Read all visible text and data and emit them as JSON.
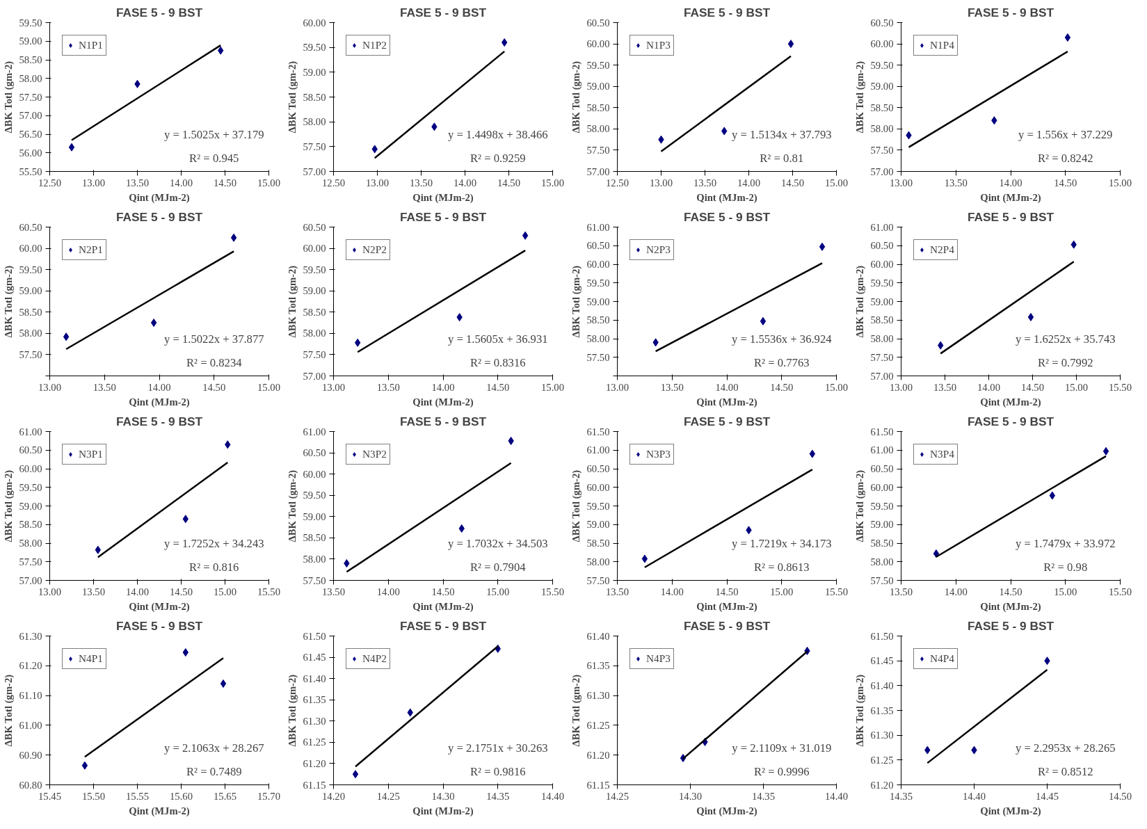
{
  "chart_data": [
    {
      "type": "scatter",
      "title": "FASE 5 - 9 BST",
      "xlabel": "Qint (MJm-2)",
      "ylabel": "ΔBK Totl (gm-2)",
      "grid": false,
      "legend": "top left",
      "xlim": [
        12.5,
        15
      ],
      "xticks": [
        {
          "value": 12.5,
          "label": "12.50"
        },
        {
          "value": 13,
          "label": "13.00"
        },
        {
          "value": 13.5,
          "label": "13.50"
        },
        {
          "value": 14,
          "label": "14.00"
        },
        {
          "value": 14.5,
          "label": "14.50"
        },
        {
          "value": 15,
          "label": "15.00"
        }
      ],
      "ylim": [
        55.5,
        59.5
      ],
      "yticks": [
        {
          "value": 55.5,
          "label": "55.50"
        },
        {
          "value": 56,
          "label": "56.00"
        },
        {
          "value": 56.5,
          "label": "56.50"
        },
        {
          "value": 57,
          "label": "57.00"
        },
        {
          "value": 57.5,
          "label": "57.50"
        },
        {
          "value": 58,
          "label": "58.00"
        },
        {
          "value": 58.5,
          "label": "58.50"
        },
        {
          "value": 59,
          "label": "59.00"
        },
        {
          "value": 59.5,
          "label": "59.50"
        }
      ],
      "series": [
        {
          "name": "N1P1",
          "color": "#000080",
          "marker": "diamond",
          "x": [
            12.75,
            13.5,
            14.45
          ],
          "values": [
            56.15,
            57.85,
            58.75
          ]
        },
        {
          "type": "line",
          "color": "#000000",
          "x": [
            12.75,
            14.45
          ],
          "values": [
            56.34,
            58.89
          ]
        }
      ],
      "annotations": [
        "y = 1.5025x + 37.179",
        "R² = 0.945"
      ]
    },
    {
      "type": "scatter",
      "title": "FASE 5 - 9 BST",
      "xlabel": "Qint (MJm-2)",
      "ylabel": "ΔBK Totl (gm-2)",
      "grid": false,
      "legend": "top left",
      "xlim": [
        12.5,
        15
      ],
      "xticks": [
        {
          "value": 12.5,
          "label": "12.50"
        },
        {
          "value": 13,
          "label": "13.00"
        },
        {
          "value": 13.5,
          "label": "13.50"
        },
        {
          "value": 14,
          "label": "14.00"
        },
        {
          "value": 14.5,
          "label": "14.50"
        },
        {
          "value": 15,
          "label": "15.00"
        }
      ],
      "ylim": [
        57,
        60
      ],
      "yticks": [
        {
          "value": 57,
          "label": "57.00"
        },
        {
          "value": 57.5,
          "label": "57.50"
        },
        {
          "value": 58,
          "label": "58.00"
        },
        {
          "value": 58.5,
          "label": "58.50"
        },
        {
          "value": 59,
          "label": "59.00"
        },
        {
          "value": 59.5,
          "label": "59.50"
        },
        {
          "value": 60,
          "label": "60.00"
        }
      ],
      "series": [
        {
          "name": "N1P2",
          "color": "#000080",
          "marker": "diamond",
          "x": [
            12.97,
            13.65,
            14.45
          ],
          "values": [
            57.45,
            57.9,
            59.6
          ]
        },
        {
          "type": "line",
          "color": "#000000",
          "x": [
            12.97,
            14.45
          ],
          "values": [
            57.27,
            59.42
          ]
        }
      ],
      "annotations": [
        "y = 1.4498x + 38.466",
        "R² = 0.9259"
      ]
    },
    {
      "type": "scatter",
      "title": "FASE 5 - 9 BST",
      "xlabel": "Qint (MJm-2)",
      "ylabel": "ΔBK Totl (gm-2)",
      "grid": false,
      "legend": "top left",
      "xlim": [
        12.5,
        15
      ],
      "xticks": [
        {
          "value": 12.5,
          "label": "12.50"
        },
        {
          "value": 13,
          "label": "13.00"
        },
        {
          "value": 13.5,
          "label": "13.50"
        },
        {
          "value": 14,
          "label": "14.00"
        },
        {
          "value": 14.5,
          "label": "14.50"
        },
        {
          "value": 15,
          "label": "15.00"
        }
      ],
      "ylim": [
        57,
        60.5
      ],
      "yticks": [
        {
          "value": 57,
          "label": "57.00"
        },
        {
          "value": 57.5,
          "label": "57.50"
        },
        {
          "value": 58,
          "label": "58.00"
        },
        {
          "value": 58.5,
          "label": "58.50"
        },
        {
          "value": 59,
          "label": "59.00"
        },
        {
          "value": 59.5,
          "label": "59.50"
        },
        {
          "value": 60,
          "label": "60.00"
        },
        {
          "value": 60.5,
          "label": "60.50"
        }
      ],
      "series": [
        {
          "name": "N1P3",
          "color": "#000080",
          "marker": "diamond",
          "x": [
            13.0,
            13.72,
            14.48
          ],
          "values": [
            57.75,
            57.95,
            60.0
          ]
        },
        {
          "type": "line",
          "color": "#000000",
          "x": [
            13.0,
            14.48
          ],
          "values": [
            57.47,
            59.71
          ]
        }
      ],
      "annotations": [
        "y = 1.5134x + 37.793",
        "R² = 0.81"
      ]
    },
    {
      "type": "scatter",
      "title": "FASE 5 - 9 BST",
      "xlabel": "Qint (MJm-2)",
      "ylabel": "ΔBK Totl (gm-2)",
      "grid": false,
      "legend": "top left",
      "xlim": [
        13,
        15
      ],
      "xticks": [
        {
          "value": 13,
          "label": "13.00"
        },
        {
          "value": 13.5,
          "label": "13.50"
        },
        {
          "value": 14,
          "label": "14.00"
        },
        {
          "value": 14.5,
          "label": "14.50"
        },
        {
          "value": 15,
          "label": "15.00"
        }
      ],
      "ylim": [
        57,
        60.5
      ],
      "yticks": [
        {
          "value": 57,
          "label": "57.00"
        },
        {
          "value": 57.5,
          "label": "57.50"
        },
        {
          "value": 58,
          "label": "58.00"
        },
        {
          "value": 58.5,
          "label": "58.50"
        },
        {
          "value": 59,
          "label": "59.00"
        },
        {
          "value": 59.5,
          "label": "59.50"
        },
        {
          "value": 60,
          "label": "60.00"
        },
        {
          "value": 60.5,
          "label": "60.50"
        }
      ],
      "series": [
        {
          "name": "N1P4",
          "color": "#000080",
          "marker": "diamond",
          "x": [
            13.07,
            13.85,
            14.52
          ],
          "values": [
            57.85,
            58.2,
            60.15
          ]
        },
        {
          "type": "line",
          "color": "#000000",
          "x": [
            13.07,
            14.52
          ],
          "values": [
            57.57,
            59.82
          ]
        }
      ],
      "annotations": [
        "y = 1.556x + 37.229",
        "R² = 0.8242"
      ]
    },
    {
      "type": "scatter",
      "title": "FASE 5 - 9 BST",
      "xlabel": "Qint (MJm-2)",
      "ylabel": "ΔBK Totl (gm-2)",
      "grid": false,
      "legend": "top left",
      "xlim": [
        13,
        15
      ],
      "xticks": [
        {
          "value": 13,
          "label": "13.00"
        },
        {
          "value": 13.5,
          "label": "13.50"
        },
        {
          "value": 14,
          "label": "14.00"
        },
        {
          "value": 14.5,
          "label": "14.50"
        },
        {
          "value": 15,
          "label": "15.00"
        }
      ],
      "ylim": [
        57,
        60.5
      ],
      "yticks": [
        {
          "value": 57,
          "label": null
        },
        {
          "value": 57.5,
          "label": "57.50"
        },
        {
          "value": 58,
          "label": "58.00"
        },
        {
          "value": 58.5,
          "label": "58.50"
        },
        {
          "value": 59,
          "label": "59.00"
        },
        {
          "value": 59.5,
          "label": "59.50"
        },
        {
          "value": 60,
          "label": "60.00"
        },
        {
          "value": 60.5,
          "label": "60.50"
        }
      ],
      "series": [
        {
          "name": "N2P1",
          "color": "#000080",
          "marker": "diamond",
          "x": [
            13.15,
            13.95,
            14.68
          ],
          "values": [
            57.92,
            58.25,
            60.25
          ]
        },
        {
          "type": "line",
          "color": "#000000",
          "x": [
            13.15,
            14.68
          ],
          "values": [
            57.63,
            59.93
          ]
        }
      ],
      "annotations": [
        "y = 1.5022x + 37.877",
        "R² = 0.8234"
      ]
    },
    {
      "type": "scatter",
      "title": "FASE 5 - 9 BST",
      "xlabel": "Qint (MJm-2)",
      "ylabel": "ΔBK Totl (gm-2)",
      "grid": false,
      "legend": "top left",
      "xlim": [
        13,
        15
      ],
      "xticks": [
        {
          "value": 13,
          "label": "13.00"
        },
        {
          "value": 13.5,
          "label": "13.50"
        },
        {
          "value": 14,
          "label": "14.00"
        },
        {
          "value": 14.5,
          "label": "14.50"
        },
        {
          "value": 15,
          "label": "15.00"
        }
      ],
      "ylim": [
        57,
        60.5
      ],
      "yticks": [
        {
          "value": 57,
          "label": "57.00"
        },
        {
          "value": 57.5,
          "label": "57.50"
        },
        {
          "value": 58,
          "label": "58.00"
        },
        {
          "value": 58.5,
          "label": "58.50"
        },
        {
          "value": 59,
          "label": "59.00"
        },
        {
          "value": 59.5,
          "label": "59.50"
        },
        {
          "value": 60,
          "label": "60.00"
        },
        {
          "value": 60.5,
          "label": "60.50"
        }
      ],
      "series": [
        {
          "name": "N2P2",
          "color": "#000080",
          "marker": "diamond",
          "x": [
            13.22,
            14.15,
            14.75
          ],
          "values": [
            57.78,
            58.38,
            60.3
          ]
        },
        {
          "type": "line",
          "color": "#000000",
          "x": [
            13.22,
            14.75
          ],
          "values": [
            57.56,
            59.95
          ]
        }
      ],
      "annotations": [
        "y = 1.5605x + 36.931",
        "R² = 0.8316"
      ]
    },
    {
      "type": "scatter",
      "title": "FASE 5 - 9 BST",
      "xlabel": "Qint (MJm-2)",
      "ylabel": "ΔBK Totl (gm-2)",
      "grid": false,
      "legend": "top left",
      "xlim": [
        13,
        15
      ],
      "xticks": [
        {
          "value": 13,
          "label": "13.00"
        },
        {
          "value": 13.5,
          "label": "13.50"
        },
        {
          "value": 14,
          "label": "14.00"
        },
        {
          "value": 14.5,
          "label": "14.50"
        },
        {
          "value": 15,
          "label": "15.00"
        }
      ],
      "ylim": [
        57,
        61
      ],
      "yticks": [
        {
          "value": 57,
          "label": null
        },
        {
          "value": 57.5,
          "label": "57.50"
        },
        {
          "value": 58,
          "label": "58.00"
        },
        {
          "value": 58.5,
          "label": "58.50"
        },
        {
          "value": 59,
          "label": "59.00"
        },
        {
          "value": 59.5,
          "label": "59.50"
        },
        {
          "value": 60,
          "label": "60.00"
        },
        {
          "value": 60.5,
          "label": "60.50"
        },
        {
          "value": 61,
          "label": "61.00"
        }
      ],
      "series": [
        {
          "name": "N2P3",
          "color": "#000080",
          "marker": "diamond",
          "x": [
            13.35,
            14.33,
            14.87
          ],
          "values": [
            57.9,
            58.47,
            60.47
          ]
        },
        {
          "type": "line",
          "color": "#000000",
          "x": [
            13.35,
            14.87
          ],
          "values": [
            57.66,
            60.03
          ]
        }
      ],
      "annotations": [
        "y = 1.5536x + 36.924",
        "R² = 0.7763"
      ]
    },
    {
      "type": "scatter",
      "title": "FASE 5 - 9 BST",
      "xlabel": "Qint (MJm-2)",
      "ylabel": "ΔBK Totl (gm-2)",
      "grid": false,
      "legend": "top left",
      "xlim": [
        13,
        15.5
      ],
      "xticks": [
        {
          "value": 13,
          "label": "13.00"
        },
        {
          "value": 13.5,
          "label": "13.50"
        },
        {
          "value": 14,
          "label": "14.00"
        },
        {
          "value": 14.5,
          "label": "14.50"
        },
        {
          "value": 15,
          "label": "15.00"
        },
        {
          "value": 15.5,
          "label": "15.50"
        }
      ],
      "ylim": [
        57,
        61
      ],
      "yticks": [
        {
          "value": 57,
          "label": "57.00"
        },
        {
          "value": 57.5,
          "label": "57.50"
        },
        {
          "value": 58,
          "label": "58.00"
        },
        {
          "value": 58.5,
          "label": "58.50"
        },
        {
          "value": 59,
          "label": "59.00"
        },
        {
          "value": 59.5,
          "label": "59.50"
        },
        {
          "value": 60,
          "label": "60.00"
        },
        {
          "value": 60.5,
          "label": "60.50"
        },
        {
          "value": 61,
          "label": "61.00"
        }
      ],
      "series": [
        {
          "name": "N2P4",
          "color": "#000080",
          "marker": "diamond",
          "x": [
            13.45,
            14.48,
            14.97
          ],
          "values": [
            57.82,
            58.58,
            60.53
          ]
        },
        {
          "type": "line",
          "color": "#000000",
          "x": [
            13.45,
            14.97
          ],
          "values": [
            57.6,
            60.07
          ]
        }
      ],
      "annotations": [
        "y = 1.6252x + 35.743",
        "R² = 0.7992"
      ]
    },
    {
      "type": "scatter",
      "title": "FASE 5 - 9 BST",
      "xlabel": "Qint (MJm-2)",
      "ylabel": "ΔBK Totl (gm-2)",
      "grid": false,
      "legend": "top left",
      "xlim": [
        13,
        15.5
      ],
      "xticks": [
        {
          "value": 13,
          "label": "13.00"
        },
        {
          "value": 13.5,
          "label": "13.50"
        },
        {
          "value": 14,
          "label": "14.00"
        },
        {
          "value": 14.5,
          "label": "14.50"
        },
        {
          "value": 15,
          "label": "15.00"
        },
        {
          "value": 15.5,
          "label": "15.50"
        }
      ],
      "ylim": [
        57,
        61
      ],
      "yticks": [
        {
          "value": 57,
          "label": "57.00"
        },
        {
          "value": 57.5,
          "label": "57.50"
        },
        {
          "value": 58,
          "label": "58.00"
        },
        {
          "value": 58.5,
          "label": "58.50"
        },
        {
          "value": 59,
          "label": "59.00"
        },
        {
          "value": 59.5,
          "label": "59.50"
        },
        {
          "value": 60,
          "label": "60.00"
        },
        {
          "value": 60.5,
          "label": "60.50"
        },
        {
          "value": 61,
          "label": "61.00"
        }
      ],
      "series": [
        {
          "name": "N3P1",
          "color": "#000080",
          "marker": "diamond",
          "x": [
            13.55,
            14.55,
            15.03
          ],
          "values": [
            57.82,
            58.65,
            60.65
          ]
        },
        {
          "type": "line",
          "color": "#000000",
          "x": [
            13.55,
            15.03
          ],
          "values": [
            57.62,
            60.17
          ]
        }
      ],
      "annotations": [
        "y = 1.7252x + 34.243",
        "R² = 0.816"
      ]
    },
    {
      "type": "scatter",
      "title": "FASE 5 - 9 BST",
      "xlabel": "Qint (MJm-2)",
      "ylabel": "ΔBK Totl (gm-2)",
      "grid": false,
      "legend": "top left",
      "xlim": [
        13.5,
        15.5
      ],
      "xticks": [
        {
          "value": 13.5,
          "label": "13.50"
        },
        {
          "value": 14,
          "label": "14.00"
        },
        {
          "value": 14.5,
          "label": "14.50"
        },
        {
          "value": 15,
          "label": "15.00"
        },
        {
          "value": 15.5,
          "label": "15.50"
        }
      ],
      "ylim": [
        57.5,
        61
      ],
      "yticks": [
        {
          "value": 57.5,
          "label": "57.50"
        },
        {
          "value": 58,
          "label": "58.00"
        },
        {
          "value": 58.5,
          "label": "58.50"
        },
        {
          "value": 59,
          "label": "59.00"
        },
        {
          "value": 59.5,
          "label": "59.50"
        },
        {
          "value": 60,
          "label": "60.00"
        },
        {
          "value": 60.5,
          "label": "60.50"
        },
        {
          "value": 61,
          "label": "61.00"
        }
      ],
      "series": [
        {
          "name": "N3P2",
          "color": "#000080",
          "marker": "diamond",
          "x": [
            13.62,
            14.67,
            15.12
          ],
          "values": [
            57.9,
            58.72,
            60.78
          ]
        },
        {
          "type": "line",
          "color": "#000000",
          "x": [
            13.62,
            15.12
          ],
          "values": [
            57.7,
            60.26
          ]
        }
      ],
      "annotations": [
        "y = 1.7032x + 34.503",
        "R² = 0.7904"
      ]
    },
    {
      "type": "scatter",
      "title": "FASE 5 - 9 BST",
      "xlabel": "Qint (MJm-2)",
      "ylabel": "ΔBK Totl (gm-2)",
      "grid": false,
      "legend": "top left",
      "xlim": [
        13.5,
        15.5
      ],
      "xticks": [
        {
          "value": 13.5,
          "label": "13.50"
        },
        {
          "value": 14,
          "label": "14.00"
        },
        {
          "value": 14.5,
          "label": "14.50"
        },
        {
          "value": 15,
          "label": "15.00"
        },
        {
          "value": 15.5,
          "label": "15.50"
        }
      ],
      "ylim": [
        57.5,
        61.5
      ],
      "yticks": [
        {
          "value": 57.5,
          "label": "57.50"
        },
        {
          "value": 58,
          "label": "58.00"
        },
        {
          "value": 58.5,
          "label": "58.50"
        },
        {
          "value": 59,
          "label": "59.00"
        },
        {
          "value": 59.5,
          "label": "59.50"
        },
        {
          "value": 60,
          "label": "60.00"
        },
        {
          "value": 60.5,
          "label": "60.50"
        },
        {
          "value": 61,
          "label": "61.00"
        },
        {
          "value": 61.5,
          "label": "61.50"
        }
      ],
      "series": [
        {
          "name": "N3P3",
          "color": "#000080",
          "marker": "diamond",
          "x": [
            13.75,
            14.7,
            15.28
          ],
          "values": [
            58.08,
            58.85,
            60.9
          ]
        },
        {
          "type": "line",
          "color": "#000000",
          "x": [
            13.75,
            15.28
          ],
          "values": [
            57.85,
            60.48
          ]
        }
      ],
      "annotations": [
        "y = 1.7219x + 34.173",
        "R² = 0.8613"
      ]
    },
    {
      "type": "scatter",
      "title": "FASE 5 - 9 BST",
      "xlabel": "Qint (MJm-2)",
      "ylabel": "ΔBK Totl (gm-2)",
      "grid": false,
      "legend": "top left",
      "xlim": [
        13.5,
        15.5
      ],
      "xticks": [
        {
          "value": 13.5,
          "label": "13.50"
        },
        {
          "value": 14,
          "label": "14.00"
        },
        {
          "value": 14.5,
          "label": "14.50"
        },
        {
          "value": 15,
          "label": "15.00"
        },
        {
          "value": 15.5,
          "label": "15.50"
        }
      ],
      "ylim": [
        57.5,
        61.5
      ],
      "yticks": [
        {
          "value": 57.5,
          "label": "57.50"
        },
        {
          "value": 58,
          "label": "58.00"
        },
        {
          "value": 58.5,
          "label": "58.50"
        },
        {
          "value": 59,
          "label": "59.00"
        },
        {
          "value": 59.5,
          "label": "59.50"
        },
        {
          "value": 60,
          "label": "60.00"
        },
        {
          "value": 60.5,
          "label": "60.50"
        },
        {
          "value": 61,
          "label": "61.00"
        },
        {
          "value": 61.5,
          "label": "61.50"
        }
      ],
      "series": [
        {
          "name": "N3P4",
          "color": "#000080",
          "marker": "diamond",
          "x": [
            13.82,
            14.88,
            15.37
          ],
          "values": [
            58.22,
            59.78,
            60.97
          ]
        },
        {
          "type": "line",
          "color": "#000000",
          "x": [
            13.82,
            15.37
          ],
          "values": [
            58.13,
            60.84
          ]
        }
      ],
      "annotations": [
        "y = 1.7479x + 33.972",
        "R² = 0.98"
      ]
    },
    {
      "type": "scatter",
      "title": "FASE 5 - 9 BST",
      "xlabel": "Qint (MJm-2)",
      "ylabel": "ΔBK Totl (gm-2)",
      "grid": false,
      "legend": "top left",
      "xlim": [
        15.45,
        15.7
      ],
      "xticks": [
        {
          "value": 15.45,
          "label": "15.45"
        },
        {
          "value": 15.5,
          "label": "15.50"
        },
        {
          "value": 15.55,
          "label": "15.55"
        },
        {
          "value": 15.6,
          "label": "15.60"
        },
        {
          "value": 15.65,
          "label": "15.65"
        },
        {
          "value": 15.7,
          "label": "15.70"
        }
      ],
      "ylim": [
        60.8,
        61.3
      ],
      "yticks": [
        {
          "value": 60.8,
          "label": "60.80"
        },
        {
          "value": 60.9,
          "label": "60.90"
        },
        {
          "value": 61,
          "label": "61.00"
        },
        {
          "value": 61.1,
          "label": "61.10"
        },
        {
          "value": 61.2,
          "label": "61.20"
        },
        {
          "value": 61.3,
          "label": "61.30"
        }
      ],
      "series": [
        {
          "name": "N4P1",
          "color": "#000080",
          "marker": "diamond",
          "x": [
            15.49,
            15.605,
            15.648
          ],
          "values": [
            60.865,
            61.245,
            61.14
          ]
        },
        {
          "type": "line",
          "color": "#000000",
          "x": [
            15.49,
            15.648
          ],
          "values": [
            60.894,
            61.226
          ]
        }
      ],
      "annotations": [
        "y = 2.1063x + 28.267",
        "R² = 0.7489"
      ]
    },
    {
      "type": "scatter",
      "title": "FASE 5 - 9 BST",
      "xlabel": "Qint (MJm-2)",
      "ylabel": "ΔBK Totl (gm-2)",
      "grid": false,
      "legend": "top left",
      "xlim": [
        14.2,
        14.4
      ],
      "xticks": [
        {
          "value": 14.2,
          "label": "14.20"
        },
        {
          "value": 14.25,
          "label": "14.25"
        },
        {
          "value": 14.3,
          "label": "14.30"
        },
        {
          "value": 14.35,
          "label": "14.35"
        },
        {
          "value": 14.4,
          "label": "14.40"
        }
      ],
      "ylim": [
        61.15,
        61.5
      ],
      "yticks": [
        {
          "value": 61.15,
          "label": "61.15"
        },
        {
          "value": 61.2,
          "label": "61.20"
        },
        {
          "value": 61.25,
          "label": "61.25"
        },
        {
          "value": 61.3,
          "label": "61.30"
        },
        {
          "value": 61.35,
          "label": "61.35"
        },
        {
          "value": 61.4,
          "label": "61.40"
        },
        {
          "value": 61.45,
          "label": "61.45"
        },
        {
          "value": 61.5,
          "label": "61.50"
        }
      ],
      "series": [
        {
          "name": "N4P2",
          "color": "#000080",
          "marker": "diamond",
          "x": [
            14.22,
            14.27,
            14.35
          ],
          "values": [
            61.175,
            61.32,
            61.47
          ]
        },
        {
          "type": "line",
          "color": "#000000",
          "x": [
            14.22,
            14.35
          ],
          "values": [
            61.193,
            61.476
          ]
        }
      ],
      "annotations": [
        "y = 2.1751x + 30.263",
        "R² = 0.9816"
      ]
    },
    {
      "type": "scatter",
      "title": "FASE 5 - 9 BST",
      "xlabel": "Qint (MJm-2)",
      "ylabel": "ΔBK Totl (gm-2)",
      "grid": false,
      "legend": "top left",
      "xlim": [
        14.25,
        14.4
      ],
      "xticks": [
        {
          "value": 14.25,
          "label": "14.25"
        },
        {
          "value": 14.3,
          "label": "14.30"
        },
        {
          "value": 14.35,
          "label": "14.35"
        },
        {
          "value": 14.4,
          "label": "14.40"
        }
      ],
      "ylim": [
        61.15,
        61.4
      ],
      "yticks": [
        {
          "value": 61.15,
          "label": "61.15"
        },
        {
          "value": 61.2,
          "label": "61.20"
        },
        {
          "value": 61.25,
          "label": "61.25"
        },
        {
          "value": 61.3,
          "label": "61.30"
        },
        {
          "value": 61.35,
          "label": "61.35"
        },
        {
          "value": 61.4,
          "label": "61.40"
        }
      ],
      "series": [
        {
          "name": "N4P3",
          "color": "#000080",
          "marker": "diamond",
          "x": [
            14.295,
            14.31,
            14.38
          ],
          "values": [
            61.195,
            61.222,
            61.375
          ]
        },
        {
          "type": "line",
          "color": "#000000",
          "x": [
            14.295,
            14.38
          ],
          "values": [
            61.194,
            61.374
          ]
        }
      ],
      "annotations": [
        "y = 2.1109x + 31.019",
        "R² = 0.9996"
      ]
    },
    {
      "type": "scatter",
      "title": "FASE 5 - 9 BST",
      "xlabel": "Qint (MJm-2)",
      "ylabel": "ΔBK Totl (gm-2)",
      "grid": false,
      "legend": "top left",
      "xlim": [
        14.35,
        14.5
      ],
      "xticks": [
        {
          "value": 14.35,
          "label": "14.35"
        },
        {
          "value": 14.4,
          "label": "14.40"
        },
        {
          "value": 14.45,
          "label": "14.45"
        },
        {
          "value": 14.5,
          "label": "14.50"
        }
      ],
      "ylim": [
        61.2,
        61.5
      ],
      "yticks": [
        {
          "value": 61.2,
          "label": "61.20"
        },
        {
          "value": 61.25,
          "label": "61.25"
        },
        {
          "value": 61.3,
          "label": "61.30"
        },
        {
          "value": 61.35,
          "label": "61.35"
        },
        {
          "value": 61.4,
          "label": "61.40"
        },
        {
          "value": 61.45,
          "label": "61.45"
        },
        {
          "value": 61.5,
          "label": "61.50"
        }
      ],
      "series": [
        {
          "name": "N4P4",
          "color": "#000080",
          "marker": "diamond",
          "x": [
            14.368,
            14.4,
            14.45
          ],
          "values": [
            61.27,
            61.27,
            61.45
          ]
        },
        {
          "type": "line",
          "color": "#000000",
          "x": [
            14.368,
            14.45
          ],
          "values": [
            61.244,
            61.432
          ]
        }
      ],
      "annotations": [
        "y = 2.2953x + 28.265",
        "R² = 0.8512"
      ]
    }
  ]
}
